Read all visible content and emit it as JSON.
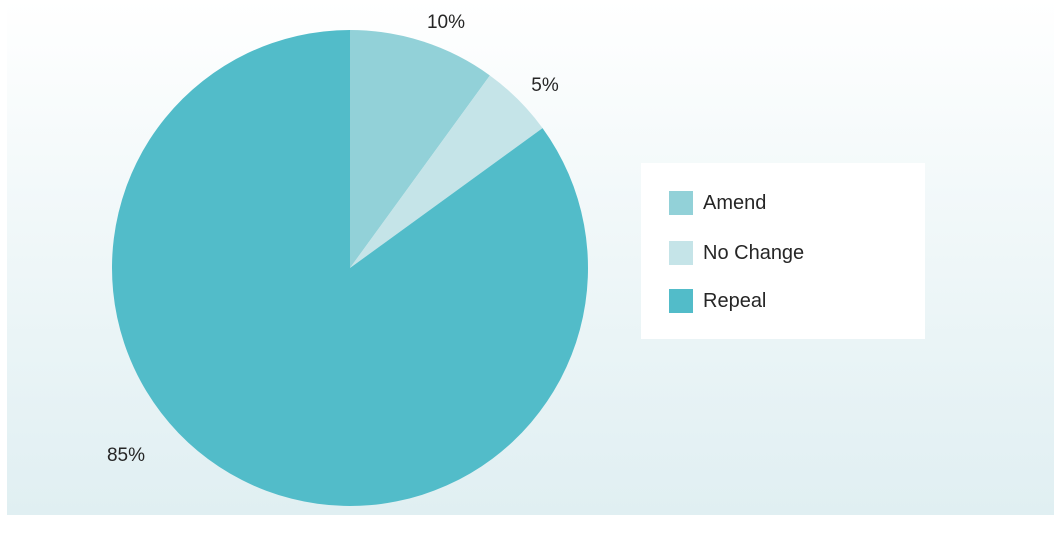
{
  "chart_data": {
    "type": "pie",
    "slices": [
      {
        "name": "Amend",
        "value": 10,
        "label": "10%",
        "color": "#92d1d8"
      },
      {
        "name": "No Change",
        "value": 5,
        "label": "5%",
        "color": "#c5e4e8"
      },
      {
        "name": "Repeal",
        "value": 85,
        "label": "85%",
        "color": "#52bcc9"
      }
    ],
    "start_angle": "12 o'clock",
    "direction": "clockwise",
    "legend_position": "right",
    "legend": [
      "Amend",
      "No Change",
      "Repeal"
    ]
  }
}
